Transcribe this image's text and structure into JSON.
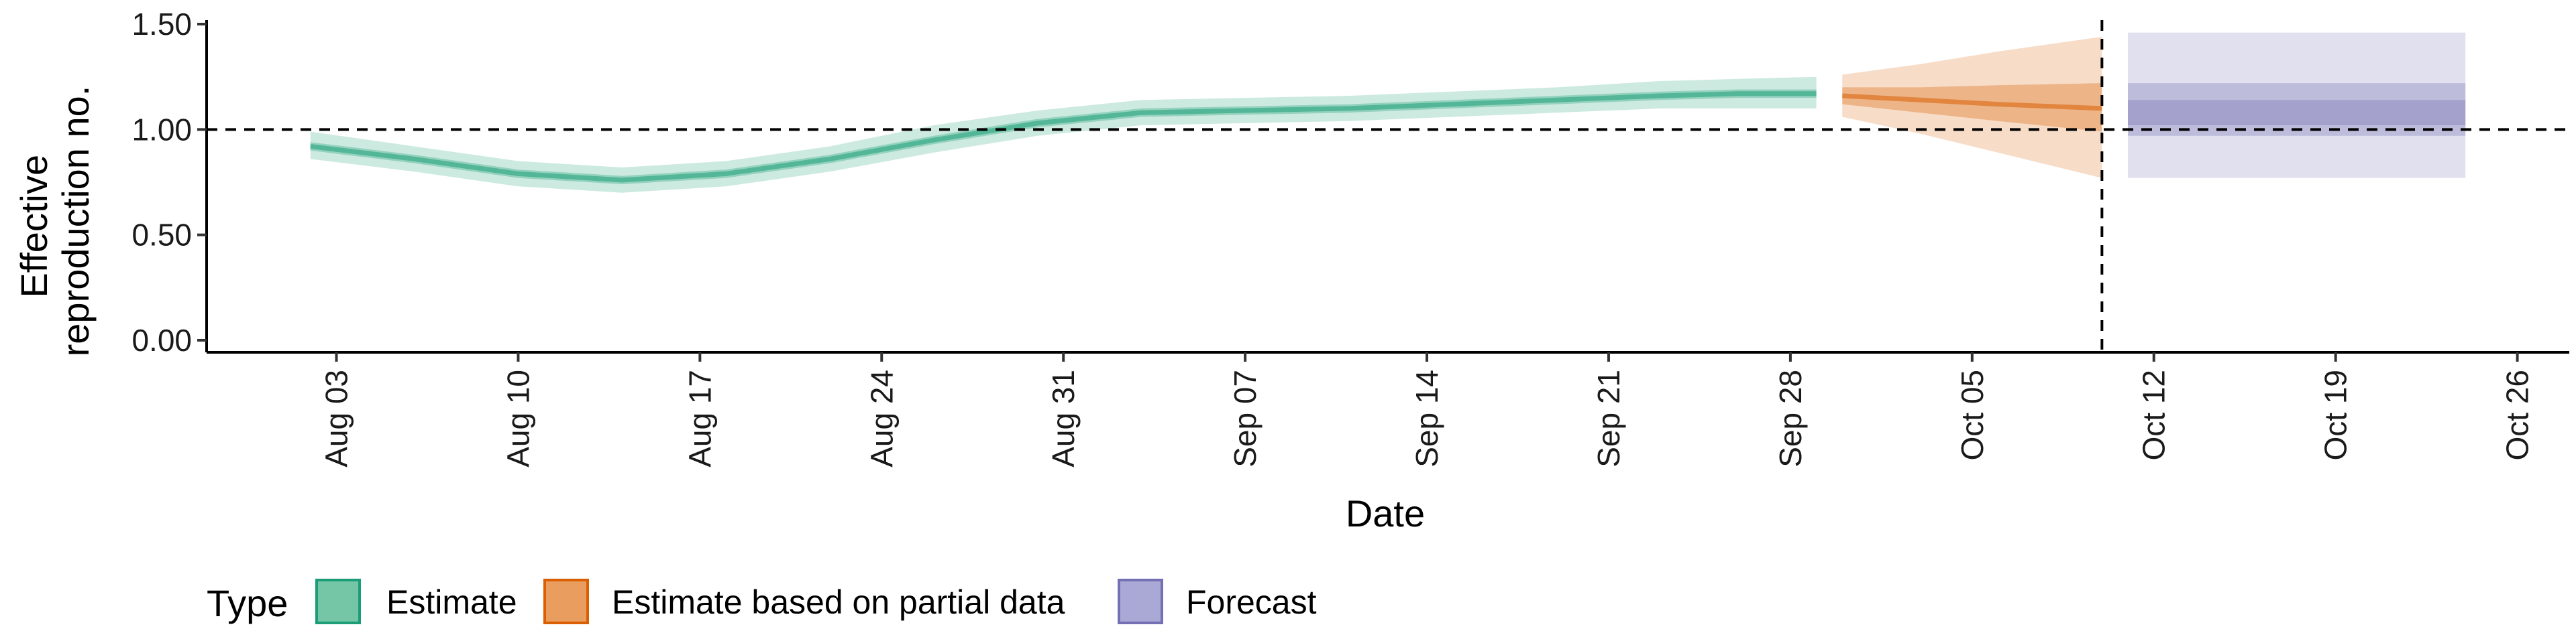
{
  "chart_data": {
    "type": "area",
    "xlabel": "Date",
    "ylabel_lines": [
      "Effective",
      "reproduction no."
    ],
    "x_ticks": [
      "Aug 03",
      "Aug 10",
      "Aug 17",
      "Aug 24",
      "Aug 31",
      "Sep 07",
      "Sep 14",
      "Sep 21",
      "Sep 28",
      "Oct 05",
      "Oct 12",
      "Oct 19",
      "Oct 26"
    ],
    "y_ticks": [
      "0.00",
      "0.50",
      "1.00",
      "1.50"
    ],
    "ylim": [
      0,
      1.5
    ],
    "x_range": [
      "2020-07-29",
      "2020-10-28"
    ],
    "reference_lines": {
      "horizontal_y": 1.0,
      "vertical_date": "2020-10-10"
    },
    "series": [
      {
        "name": "Estimate",
        "color": "#1b9e77",
        "points": [
          {
            "date": "2020-08-02",
            "median": 0.92,
            "lo50": 0.9,
            "hi50": 0.94,
            "lo90": 0.86,
            "hi90": 0.99
          },
          {
            "date": "2020-08-06",
            "median": 0.86,
            "lo50": 0.84,
            "hi50": 0.88,
            "lo90": 0.8,
            "hi90": 0.92
          },
          {
            "date": "2020-08-10",
            "median": 0.79,
            "lo50": 0.77,
            "hi50": 0.81,
            "lo90": 0.73,
            "hi90": 0.85
          },
          {
            "date": "2020-08-14",
            "median": 0.76,
            "lo50": 0.74,
            "hi50": 0.78,
            "lo90": 0.7,
            "hi90": 0.82
          },
          {
            "date": "2020-08-18",
            "median": 0.79,
            "lo50": 0.77,
            "hi50": 0.81,
            "lo90": 0.73,
            "hi90": 0.85
          },
          {
            "date": "2020-08-22",
            "median": 0.86,
            "lo50": 0.84,
            "hi50": 0.88,
            "lo90": 0.8,
            "hi90": 0.92
          },
          {
            "date": "2020-08-26",
            "median": 0.95,
            "lo50": 0.93,
            "hi50": 0.97,
            "lo90": 0.89,
            "hi90": 1.02
          },
          {
            "date": "2020-08-30",
            "median": 1.03,
            "lo50": 1.01,
            "hi50": 1.05,
            "lo90": 0.97,
            "hi90": 1.09
          },
          {
            "date": "2020-09-03",
            "median": 1.08,
            "lo50": 1.06,
            "hi50": 1.1,
            "lo90": 1.02,
            "hi90": 1.14
          },
          {
            "date": "2020-09-07",
            "median": 1.09,
            "lo50": 1.07,
            "hi50": 1.11,
            "lo90": 1.03,
            "hi90": 1.15
          },
          {
            "date": "2020-09-11",
            "median": 1.1,
            "lo50": 1.08,
            "hi50": 1.12,
            "lo90": 1.04,
            "hi90": 1.16
          },
          {
            "date": "2020-09-15",
            "median": 1.12,
            "lo50": 1.1,
            "hi50": 1.14,
            "lo90": 1.06,
            "hi90": 1.18
          },
          {
            "date": "2020-09-19",
            "median": 1.14,
            "lo50": 1.12,
            "hi50": 1.16,
            "lo90": 1.08,
            "hi90": 1.2
          },
          {
            "date": "2020-09-23",
            "median": 1.16,
            "lo50": 1.14,
            "hi50": 1.18,
            "lo90": 1.1,
            "hi90": 1.23
          },
          {
            "date": "2020-09-26",
            "median": 1.17,
            "lo50": 1.15,
            "hi50": 1.19,
            "lo90": 1.1,
            "hi90": 1.24
          },
          {
            "date": "2020-09-29",
            "median": 1.17,
            "lo50": 1.15,
            "hi50": 1.19,
            "lo90": 1.1,
            "hi90": 1.25
          }
        ]
      },
      {
        "name": "Estimate based on partial data",
        "color": "#d95f02",
        "points": [
          {
            "date": "2020-09-30",
            "median": 1.16,
            "lo50": 1.12,
            "hi50": 1.2,
            "lo90": 1.06,
            "hi90": 1.26
          },
          {
            "date": "2020-10-03",
            "median": 1.14,
            "lo50": 1.08,
            "hi50": 1.2,
            "lo90": 0.98,
            "hi90": 1.31
          },
          {
            "date": "2020-10-06",
            "median": 1.12,
            "lo50": 1.04,
            "hi50": 1.21,
            "lo90": 0.89,
            "hi90": 1.37
          },
          {
            "date": "2020-10-10",
            "median": 1.1,
            "lo50": 0.99,
            "hi50": 1.22,
            "lo90": 0.77,
            "hi90": 1.44
          }
        ]
      },
      {
        "name": "Forecast",
        "color": "#7570b3",
        "points": [
          {
            "date": "2020-10-11",
            "median": 1.08,
            "lo25": 1.02,
            "hi25": 1.14,
            "lo50": 0.97,
            "hi50": 1.22,
            "lo90": 0.77,
            "hi90": 1.46
          },
          {
            "date": "2020-10-24",
            "median": 1.08,
            "lo25": 1.02,
            "hi25": 1.14,
            "lo50": 0.97,
            "hi50": 1.22,
            "lo90": 0.77,
            "hi90": 1.46
          }
        ]
      }
    ],
    "legend": {
      "title": "Type",
      "position": "bottom-left",
      "items": [
        {
          "label": "Estimate",
          "fill": "#74c6a6",
          "stroke": "#1b9e77"
        },
        {
          "label": "Estimate based on partial data",
          "fill": "#e99d5e",
          "stroke": "#d95f02"
        },
        {
          "label": "Forecast",
          "fill": "#aaa8d5",
          "stroke": "#7570b3"
        }
      ]
    }
  }
}
